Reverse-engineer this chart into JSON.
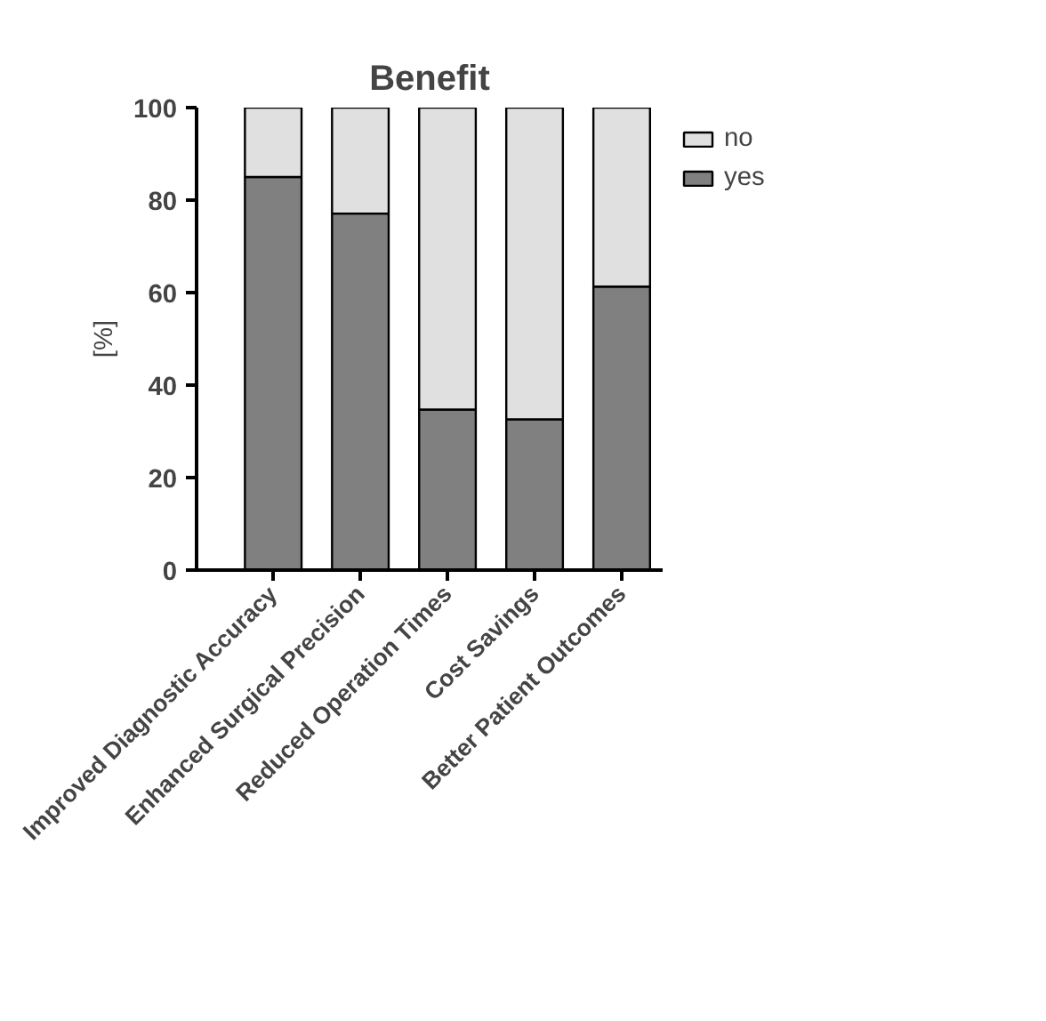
{
  "chart_data": {
    "type": "bar",
    "title": "Benefit",
    "ylabel": "[%]",
    "categories": [
      "Improved Diagnostic Accuracy",
      "Enhanced Surgical Precision",
      "Reduced Operation Times",
      "Cost Savings",
      "Better Patient Outcomes"
    ],
    "stacked": true,
    "series": [
      {
        "name": "yes",
        "color": "#808080",
        "values": [
          85.0,
          77.1,
          34.7,
          32.6,
          61.3
        ]
      },
      {
        "name": "no",
        "color": "#e0e0e0",
        "values": [
          15.0,
          22.9,
          65.3,
          67.4,
          38.7
        ]
      }
    ],
    "ylim": [
      0,
      100
    ],
    "yticks": [
      0,
      20,
      40,
      60,
      80,
      100
    ],
    "grid": false,
    "legend": "right"
  }
}
